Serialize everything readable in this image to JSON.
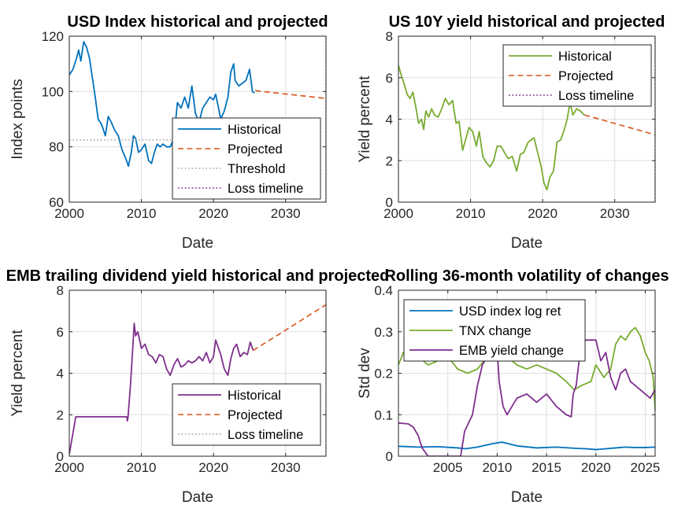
{
  "chart_data": [
    {
      "type": "line",
      "title": "USD Index historical and projected",
      "xlabel": "Date",
      "ylabel": "Index points",
      "xlim": [
        2000,
        2035.6
      ],
      "ylim": [
        60,
        120
      ],
      "xticks": [
        2000,
        2010,
        2020,
        2030
      ],
      "yticks": [
        60,
        80,
        100,
        120
      ],
      "grid": true,
      "legend_position": "bottom-right",
      "series": [
        {
          "name": "Historical",
          "color": "#0072BD",
          "style": "solid",
          "x": [
            2000,
            2000.5,
            2001,
            2001.3,
            2001.6,
            2002,
            2002.4,
            2002.8,
            2003.2,
            2003.6,
            2004,
            2004.5,
            2005,
            2005.4,
            2005.8,
            2006.3,
            2006.8,
            2007.3,
            2007.8,
            2008.2,
            2008.6,
            2008.9,
            2009.2,
            2009.6,
            2010,
            2010.5,
            2011,
            2011.4,
            2011.8,
            2012.2,
            2012.6,
            2013,
            2013.5,
            2014,
            2014.5,
            2015,
            2015.5,
            2016,
            2016.5,
            2017,
            2017.5,
            2018,
            2018.5,
            2019,
            2019.5,
            2020,
            2020.3,
            2020.7,
            2021,
            2021.5,
            2022,
            2022.4,
            2022.8,
            2023,
            2023.5,
            2024,
            2024.5,
            2025,
            2025.4,
            2025.7
          ],
          "y": [
            106,
            108,
            112,
            115,
            111,
            118,
            116,
            112,
            105,
            98,
            90,
            88,
            84,
            91,
            89,
            86,
            84,
            79,
            76,
            73,
            78,
            84,
            83,
            78,
            79,
            81,
            75,
            74,
            78,
            81,
            80,
            81,
            80,
            80,
            83,
            96,
            94,
            98,
            94,
            102,
            92,
            89,
            94,
            96,
            98,
            97,
            99,
            94,
            90,
            93,
            98,
            107,
            110,
            104,
            102,
            103,
            104,
            108,
            100,
            99.5
          ]
        },
        {
          "name": "Projected",
          "color": "#D95319",
          "style": "dashed",
          "x": [
            2025.8,
            2035.6
          ],
          "y": [
            100.3,
            97.5
          ]
        },
        {
          "name": "Threshold",
          "color": "#AAAAAA",
          "style": "dotted",
          "x": [
            2000,
            2014.6
          ],
          "y": [
            82.5,
            82.5
          ]
        },
        {
          "name": "Loss timeline",
          "color": "#7E2F8E",
          "style": "dotted",
          "x": [
            2035.6,
            2035.6
          ],
          "y": [
            60,
            120
          ]
        }
      ]
    },
    {
      "type": "line",
      "title": "US 10Y yield historical and projected",
      "xlabel": "Date",
      "ylabel": "Yield percent",
      "xlim": [
        2000,
        2035.6
      ],
      "ylim": [
        0,
        8
      ],
      "xticks": [
        2000,
        2010,
        2020,
        2030
      ],
      "yticks": [
        0,
        2,
        4,
        6,
        8
      ],
      "grid": true,
      "legend_position": "top-right",
      "series": [
        {
          "name": "Historical",
          "color": "#77AC30",
          "style": "solid",
          "x": [
            2000,
            2000.4,
            2000.8,
            2001.2,
            2001.6,
            2002,
            2002.4,
            2002.8,
            2003.2,
            2003.5,
            2003.8,
            2004.2,
            2004.6,
            2005,
            2005.5,
            2006,
            2006.5,
            2007,
            2007.5,
            2008,
            2008.4,
            2008.9,
            2009.3,
            2009.8,
            2010.3,
            2010.8,
            2011.2,
            2011.7,
            2012.2,
            2012.7,
            2013.2,
            2013.7,
            2014.2,
            2014.7,
            2015.2,
            2015.8,
            2016.4,
            2016.9,
            2017.4,
            2018,
            2018.8,
            2019.3,
            2019.8,
            2020.2,
            2020.6,
            2021,
            2021.5,
            2022,
            2022.5,
            2023,
            2023.4,
            2023.8,
            2024.2,
            2024.7,
            2025.2,
            2025.8
          ],
          "y": [
            6.6,
            6.1,
            5.7,
            5.2,
            5.0,
            5.3,
            4.6,
            3.8,
            4.0,
            3.5,
            4.4,
            4.1,
            4.5,
            4.2,
            4.1,
            4.5,
            5.0,
            4.7,
            4.9,
            3.8,
            3.9,
            2.5,
            3.0,
            3.6,
            3.4,
            2.7,
            3.4,
            2.2,
            1.9,
            1.7,
            2.0,
            2.7,
            2.7,
            2.4,
            2.1,
            2.2,
            1.5,
            2.3,
            2.4,
            2.9,
            3.1,
            2.4,
            1.7,
            0.9,
            0.6,
            1.2,
            1.5,
            2.9,
            3.0,
            3.5,
            4.0,
            4.8,
            4.2,
            4.5,
            4.4,
            4.2
          ]
        },
        {
          "name": "Projected",
          "color": "#D95319",
          "style": "dashed",
          "x": [
            2025.8,
            2035.6
          ],
          "y": [
            4.2,
            3.25
          ]
        },
        {
          "name": "Loss timeline",
          "color": "#7E2F8E",
          "style": "dotted",
          "x": [
            2035.6,
            2035.6
          ],
          "y": [
            0,
            8
          ]
        }
      ]
    },
    {
      "type": "line",
      "title": "EMB trailing dividend yield historical and projected",
      "xlabel": "Date",
      "ylabel": "Yield percent",
      "xlim": [
        2000,
        2035.6
      ],
      "ylim": [
        0,
        8
      ],
      "xticks": [
        2000,
        2010,
        2020,
        2030
      ],
      "yticks": [
        0,
        2,
        4,
        6,
        8
      ],
      "grid": true,
      "legend_position": "bottom-right",
      "series": [
        {
          "name": "Historical",
          "color": "#7E2F8E",
          "style": "solid",
          "x": [
            2000,
            2000.9,
            2001.5,
            2004,
            2008,
            2008.05,
            2008.15,
            2008.5,
            2008.8,
            2009,
            2009.2,
            2009.5,
            2010,
            2010.5,
            2011,
            2011.5,
            2012,
            2012.5,
            2013,
            2013.5,
            2014,
            2014.5,
            2015,
            2015.5,
            2016,
            2016.5,
            2017,
            2017.5,
            2018,
            2018.5,
            2019,
            2019.5,
            2020,
            2020.3,
            2020.6,
            2021,
            2021.5,
            2022,
            2022.4,
            2022.8,
            2023.2,
            2023.7,
            2024.2,
            2024.7,
            2025.1,
            2025.5
          ],
          "y": [
            0.1,
            1.9,
            1.9,
            1.9,
            1.9,
            1.7,
            1.9,
            3.5,
            5.2,
            6.4,
            5.8,
            6.0,
            5.2,
            5.4,
            4.9,
            4.8,
            4.5,
            4.9,
            4.8,
            4.2,
            3.9,
            4.4,
            4.7,
            4.3,
            4.4,
            4.6,
            4.5,
            4.6,
            4.8,
            4.6,
            5.0,
            4.5,
            4.8,
            5.6,
            5.3,
            4.9,
            4.2,
            3.9,
            4.7,
            5.2,
            5.4,
            4.8,
            5.0,
            4.9,
            5.5,
            5.1
          ]
        },
        {
          "name": "Projected",
          "color": "#D95319",
          "style": "dashed",
          "x": [
            2025.5,
            2035.6
          ],
          "y": [
            5.1,
            7.3
          ]
        },
        {
          "name": "Loss timeline",
          "color": "#AAAAAA",
          "style": "dotted",
          "x": [
            2035.6,
            2035.6
          ],
          "y": [
            0,
            8
          ]
        }
      ]
    },
    {
      "type": "line",
      "title": "Rolling 36-month volatility of changes",
      "xlabel": "Date",
      "ylabel": "Std dev",
      "xlim": [
        2000,
        2026
      ],
      "ylim": [
        0,
        0.4
      ],
      "xticks": [
        2005,
        2010,
        2015,
        2020,
        2025
      ],
      "yticks": [
        0,
        0.1,
        0.2,
        0.3,
        0.4
      ],
      "grid": true,
      "legend_position": "top-left",
      "series": [
        {
          "name": "USD index log ret",
          "color": "#0072BD",
          "style": "solid",
          "x": [
            2000,
            2002,
            2004,
            2006,
            2006.8,
            2008,
            2009.5,
            2010.5,
            2012,
            2014,
            2016,
            2018,
            2019,
            2020,
            2021,
            2022,
            2023,
            2024,
            2025,
            2026
          ],
          "y": [
            0.024,
            0.022,
            0.023,
            0.02,
            0.018,
            0.022,
            0.03,
            0.034,
            0.025,
            0.02,
            0.022,
            0.019,
            0.018,
            0.016,
            0.018,
            0.02,
            0.022,
            0.021,
            0.021,
            0.022
          ]
        },
        {
          "name": "TNX change",
          "color": "#77AC30",
          "style": "solid",
          "x": [
            2000,
            2000.5,
            2001,
            2002,
            2003,
            2004,
            2005,
            2006,
            2007,
            2008,
            2009,
            2010,
            2011,
            2012,
            2013,
            2014,
            2015,
            2016,
            2017,
            2017.8,
            2018.5,
            2019.5,
            2020,
            2020.8,
            2021.5,
            2022,
            2022.5,
            2023,
            2023.5,
            2024,
            2024.5,
            2025,
            2025.4,
            2025.8,
            2026
          ],
          "y": [
            0.22,
            0.25,
            0.23,
            0.24,
            0.22,
            0.23,
            0.24,
            0.21,
            0.2,
            0.21,
            0.24,
            0.26,
            0.24,
            0.22,
            0.21,
            0.22,
            0.21,
            0.2,
            0.18,
            0.16,
            0.17,
            0.18,
            0.22,
            0.19,
            0.21,
            0.27,
            0.29,
            0.28,
            0.3,
            0.31,
            0.29,
            0.25,
            0.23,
            0.19,
            0.11
          ]
        },
        {
          "name": "EMB yield change",
          "color": "#7E2F8E",
          "style": "solid",
          "x": [
            2000,
            2001,
            2001.5,
            2002,
            2002.4,
            2003,
            2005,
            2006.3,
            2006.7,
            2007.5,
            2008,
            2008.5,
            2009,
            2009.5,
            2010,
            2010.2,
            2010.6,
            2011,
            2011.5,
            2012,
            2013,
            2014,
            2015,
            2016,
            2017,
            2017.5,
            2017.7,
            2018,
            2018.5,
            2019,
            2019.5,
            2020,
            2020.5,
            2021,
            2021.5,
            2022,
            2022.5,
            2023,
            2023.5,
            2024,
            2024.5,
            2025,
            2025.5,
            2026
          ],
          "y": [
            0.08,
            0.078,
            0.07,
            0.05,
            0.02,
            0.0,
            0.0,
            0.0,
            0.06,
            0.1,
            0.17,
            0.22,
            0.24,
            0.25,
            0.26,
            0.18,
            0.12,
            0.1,
            0.12,
            0.14,
            0.15,
            0.13,
            0.15,
            0.12,
            0.1,
            0.095,
            0.15,
            0.17,
            0.27,
            0.28,
            0.28,
            0.28,
            0.23,
            0.25,
            0.19,
            0.16,
            0.2,
            0.21,
            0.18,
            0.17,
            0.16,
            0.15,
            0.14,
            0.16
          ]
        }
      ]
    }
  ]
}
